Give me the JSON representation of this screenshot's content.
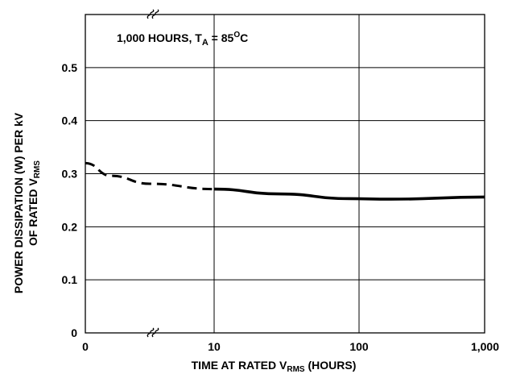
{
  "chart_data": {
    "type": "line",
    "annotation": {
      "prefix": "1,000 HOURS, T",
      "subscript": "A",
      "middle": " = 85",
      "superscript": "O",
      "suffix": "C"
    },
    "xlabel": {
      "prefix": "TIME AT RATED V",
      "subscript": "RMS",
      "suffix": " (HOURS)"
    },
    "ylabel": {
      "line1": "POWER DISSIPATION (W) PER kV",
      "line2_prefix": "OF RATED V",
      "line2_subscript": "RMS"
    },
    "x_ticks": [
      "0",
      "10",
      "100",
      "1,000"
    ],
    "y_ticks": [
      "0",
      "0.1",
      "0.2",
      "0.3",
      "0.4",
      "0.5"
    ],
    "ylim": [
      0,
      0.6
    ],
    "x_scale": "log (broken axis between 0 and 10)",
    "grid": true,
    "series": [
      {
        "style": "dashed",
        "x": [
          0,
          2,
          5,
          10
        ],
        "y": [
          0.32,
          0.296,
          0.281,
          0.271
        ]
      },
      {
        "style": "solid",
        "x": [
          10,
          30,
          100,
          200,
          1000
        ],
        "y": [
          0.271,
          0.262,
          0.253,
          0.252,
          0.256
        ]
      }
    ]
  }
}
